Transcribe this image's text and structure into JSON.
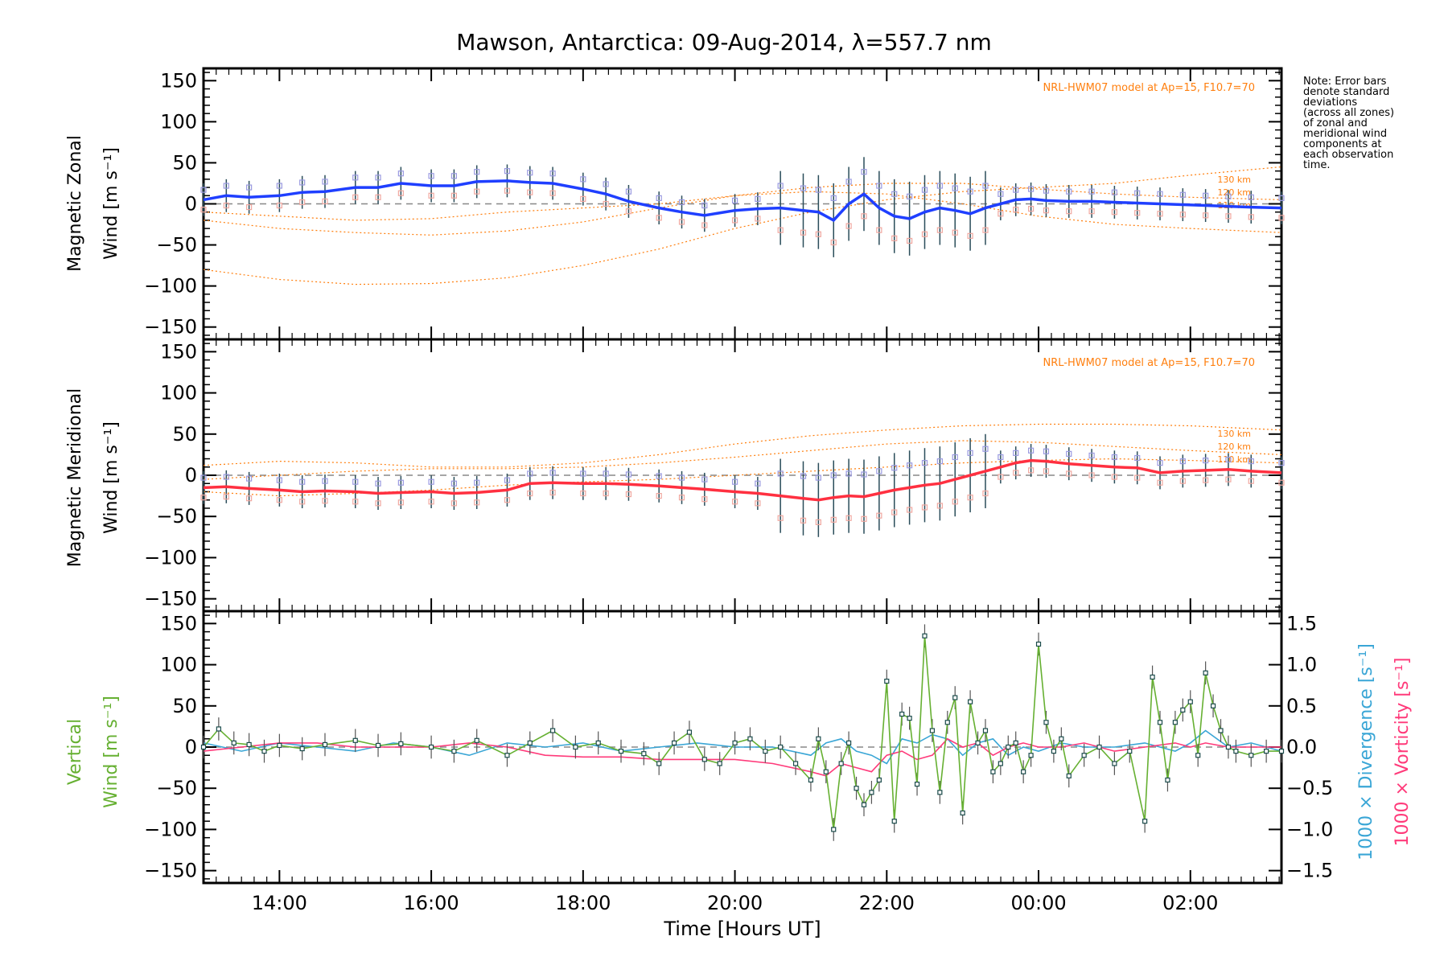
{
  "title": "Mawson, Antarctica: 09-Aug-2014, λ=557.7 nm",
  "note_lines": [
    "Note: Error bars",
    "denote standard",
    "deviations",
    "(across all zones)",
    "of zonal and",
    "meridional wind",
    "components at",
    "each observation",
    "time."
  ],
  "model_label": "NRL-HWM07 model at Ap=15, F10.7=70",
  "x_axis_title": "Time [Hours UT]",
  "x_ticks": [
    {
      "t": 14,
      "label": "14:00"
    },
    {
      "t": 16,
      "label": "16:00"
    },
    {
      "t": 18,
      "label": "18:00"
    },
    {
      "t": 20,
      "label": "20:00"
    },
    {
      "t": 22,
      "label": "22:00"
    },
    {
      "t": 24,
      "label": "00:00"
    },
    {
      "t": 26,
      "label": "02:00"
    }
  ],
  "y_ticks": [
    "150",
    "100",
    "50",
    "0",
    "−50",
    "−100",
    "−150"
  ],
  "right_ticks": [
    "1.5",
    "1.0",
    "0.5",
    "0.0",
    "−0.5",
    "−1.0",
    "−1.5"
  ],
  "panel1": {
    "ylabel_1": "Magnetic Zonal",
    "ylabel_2": "Wind [m s⁻¹]",
    "alt_labels": [
      "130 km",
      "120 km",
      "110 km"
    ]
  },
  "panel2": {
    "ylabel_1": "Magnetic Meridional",
    "ylabel_2": "Wind [m s⁻¹]",
    "alt_labels": [
      "130 km",
      "120 km",
      "110 km"
    ]
  },
  "panel3": {
    "ylabel_1": "Vertical",
    "ylabel_2": "Wind [m s⁻¹]",
    "right_label_1": "1000 × Divergence [s⁻¹]",
    "right_label_2": "1000 × Vorticity [s⁻¹]"
  },
  "colors": {
    "zonal": "#1f3fff",
    "meridional": "#ff3040",
    "vertical": "#66b032",
    "divergence": "#3aa6d6",
    "vorticity": "#ff3a7a",
    "model": "#ff7f0e"
  },
  "chart_data": [
    {
      "type": "line",
      "ylabel": "Magnetic Zonal Wind [m s⁻¹]",
      "xlabel": "Time [Hours UT]",
      "x_unit": "hours UT since 00:00 09-Aug-2014",
      "xlim": [
        13,
        27.2
      ],
      "ylim": [
        -165,
        165
      ],
      "series": [
        {
          "name": "",
          "x": [
            13,
            13.3,
            13.6,
            14,
            14.3,
            14.6,
            15,
            15.3,
            15.6,
            16,
            16.3,
            16.6,
            17,
            17.3,
            17.6,
            18,
            18.3,
            18.6,
            19,
            19.3,
            19.6,
            20,
            20.3,
            20.6,
            20.9,
            21.1,
            21.3,
            21.5,
            21.7,
            21.9,
            22.1,
            22.3,
            22.5,
            22.7,
            22.9,
            23.1,
            23.3,
            23.5,
            23.7,
            23.9,
            24.1,
            24.4,
            24.7,
            25,
            25.3,
            25.6,
            25.9,
            26.2,
            26.5,
            26.8,
            27.2
          ],
          "y": [
            5,
            10,
            8,
            10,
            14,
            15,
            20,
            20,
            25,
            22,
            22,
            27,
            28,
            26,
            25,
            18,
            12,
            3,
            -5,
            -10,
            -14,
            -8,
            -6,
            -5,
            -8,
            -10,
            -20,
            0,
            12,
            -5,
            -15,
            -18,
            -10,
            -5,
            -8,
            -12,
            -5,
            0,
            5,
            6,
            4,
            3,
            3,
            2,
            1,
            0,
            -1,
            -2,
            -3,
            -4,
            -5
          ]
        }
      ]
    },
    {
      "type": "line",
      "ylabel": "Magnetic Meridional Wind [m s⁻¹]",
      "xlabel": "Time [Hours UT]",
      "xlim": [
        13,
        27.2
      ],
      "ylim": [
        -165,
        165
      ],
      "series": [
        {
          "name": "",
          "x": [
            13,
            13.3,
            13.6,
            14,
            14.3,
            14.6,
            15,
            15.3,
            15.6,
            16,
            16.3,
            16.6,
            17,
            17.3,
            17.6,
            18,
            18.3,
            18.6,
            19,
            19.3,
            19.6,
            20,
            20.3,
            20.6,
            20.9,
            21.1,
            21.3,
            21.5,
            21.7,
            21.9,
            22.1,
            22.3,
            22.5,
            22.7,
            22.9,
            23.1,
            23.3,
            23.5,
            23.7,
            23.9,
            24.1,
            24.4,
            24.7,
            25,
            25.3,
            25.6,
            25.9,
            26.2,
            26.5,
            26.8,
            27.2
          ],
          "y": [
            -15,
            -14,
            -16,
            -18,
            -20,
            -19,
            -20,
            -22,
            -21,
            -20,
            -22,
            -21,
            -18,
            -10,
            -9,
            -10,
            -10,
            -11,
            -13,
            -15,
            -17,
            -20,
            -22,
            -25,
            -28,
            -30,
            -27,
            -25,
            -26,
            -22,
            -18,
            -15,
            -12,
            -10,
            -5,
            0,
            5,
            10,
            15,
            18,
            17,
            14,
            12,
            10,
            9,
            3,
            5,
            6,
            7,
            5,
            3
          ]
        }
      ]
    },
    {
      "type": "line",
      "ylabel": "Vertical Wind [m s⁻¹]",
      "xlabel": "Time [Hours UT]",
      "xlim": [
        13,
        27.2
      ],
      "ylim": [
        -165,
        165
      ],
      "y2label": "1000 × Divergence / Vorticity [s⁻¹]",
      "y2lim": [
        -1.65,
        1.65
      ],
      "series": [
        {
          "name": "Vertical",
          "axis": "left",
          "x": [
            13,
            13.2,
            13.4,
            13.6,
            13.8,
            14,
            14.3,
            14.6,
            15,
            15.3,
            15.6,
            16,
            16.3,
            16.6,
            17,
            17.3,
            17.6,
            17.9,
            18.2,
            18.5,
            18.8,
            19,
            19.2,
            19.4,
            19.6,
            19.8,
            20,
            20.2,
            20.4,
            20.6,
            20.8,
            21,
            21.1,
            21.2,
            21.3,
            21.4,
            21.5,
            21.6,
            21.7,
            21.8,
            21.9,
            22,
            22.1,
            22.2,
            22.3,
            22.4,
            22.5,
            22.6,
            22.7,
            22.8,
            22.9,
            23,
            23.1,
            23.2,
            23.3,
            23.4,
            23.5,
            23.6,
            23.7,
            23.8,
            23.9,
            24,
            24.1,
            24.2,
            24.3,
            24.4,
            24.6,
            24.8,
            25,
            25.2,
            25.4,
            25.5,
            25.6,
            25.7,
            25.8,
            25.9,
            26,
            26.1,
            26.2,
            26.3,
            26.4,
            26.5,
            26.6,
            26.8,
            27,
            27.2
          ],
          "y": [
            0,
            22,
            5,
            3,
            -5,
            2,
            -2,
            3,
            8,
            2,
            4,
            0,
            -5,
            8,
            -10,
            5,
            20,
            0,
            5,
            -5,
            -8,
            -20,
            5,
            18,
            -15,
            -20,
            5,
            10,
            -5,
            0,
            -20,
            -40,
            10,
            -30,
            -100,
            -20,
            5,
            -50,
            -70,
            -55,
            -40,
            80,
            -90,
            40,
            35,
            -45,
            135,
            20,
            -55,
            30,
            60,
            -80,
            55,
            5,
            20,
            -30,
            -20,
            0,
            5,
            -30,
            -10,
            125,
            30,
            -5,
            10,
            -35,
            -10,
            0,
            -20,
            -5,
            -90,
            85,
            30,
            -40,
            30,
            45,
            55,
            -10,
            90,
            50,
            20,
            0,
            -5,
            -10,
            -5,
            -5
          ]
        },
        {
          "name": "1000 × Divergence",
          "axis": "right",
          "x": [
            13,
            13.5,
            14,
            14.5,
            15,
            15.5,
            16,
            16.5,
            17,
            17.5,
            18,
            18.5,
            19,
            19.5,
            20,
            20.5,
            21,
            21.2,
            21.4,
            21.6,
            21.8,
            22,
            22.2,
            22.4,
            22.6,
            22.8,
            23,
            23.2,
            23.4,
            23.6,
            23.8,
            24,
            24.3,
            24.6,
            25,
            25.4,
            25.8,
            26,
            26.2,
            26.5,
            26.8,
            27.2
          ],
          "y": [
            0.05,
            -0.05,
            0.05,
            0.0,
            -0.05,
            0.05,
            0.0,
            -0.1,
            0.05,
            0.0,
            0.05,
            -0.05,
            0.0,
            0.05,
            0.0,
            0.0,
            -0.1,
            0.05,
            0.1,
            -0.05,
            -0.1,
            -0.2,
            0.1,
            0.05,
            0.15,
            0.1,
            -0.1,
            0.05,
            0.1,
            -0.1,
            0.0,
            -0.05,
            0.05,
            0.0,
            0.0,
            0.05,
            -0.05,
            0.05,
            0.2,
            0.0,
            0.05,
            -0.05
          ]
        },
        {
          "name": "1000 × Vorticity",
          "axis": "right",
          "x": [
            13,
            13.5,
            14,
            14.5,
            15,
            15.5,
            16,
            16.5,
            17,
            17.5,
            18,
            18.5,
            19,
            19.5,
            20,
            20.5,
            21,
            21.2,
            21.4,
            21.6,
            21.8,
            22,
            22.2,
            22.4,
            22.6,
            22.8,
            23,
            23.2,
            23.4,
            23.6,
            23.8,
            24,
            24.3,
            24.6,
            25,
            25.4,
            25.8,
            26,
            26.2,
            26.5,
            26.8,
            27.2
          ],
          "y": [
            -0.05,
            0.0,
            0.05,
            0.05,
            0.0,
            0.0,
            0.0,
            0.05,
            0.0,
            -0.1,
            -0.12,
            -0.12,
            -0.15,
            -0.15,
            -0.15,
            -0.2,
            -0.3,
            -0.35,
            -0.2,
            -0.25,
            -0.3,
            -0.1,
            -0.05,
            -0.15,
            -0.1,
            0.1,
            0.0,
            0.05,
            -0.1,
            0.0,
            0.05,
            0.0,
            0.0,
            0.05,
            -0.05,
            0.0,
            0.05,
            0.0,
            0.05,
            0.0,
            0.0,
            0.0
          ]
        }
      ]
    }
  ],
  "model_curves": {
    "panel1": [
      {
        "x": [
          13,
          14,
          15,
          16,
          17,
          18,
          19,
          20,
          21,
          22,
          23,
          24,
          25,
          26,
          27.2
        ],
        "y": [
          -80,
          -92,
          -98,
          -97,
          -90,
          -75,
          -55,
          -30,
          -10,
          5,
          15,
          20,
          25,
          35,
          45
        ]
      },
      {
        "x": [
          13,
          14,
          15,
          16,
          17,
          18,
          19,
          20,
          21,
          22,
          23,
          24,
          25,
          26,
          27.2
        ],
        "y": [
          -20,
          -30,
          -35,
          -38,
          -33,
          -22,
          -5,
          10,
          20,
          25,
          25,
          18,
          12,
          8,
          5
        ]
      },
      {
        "x": [
          13,
          14,
          15,
          16,
          17,
          18,
          19,
          20,
          21,
          22,
          23,
          24,
          25,
          26,
          27.2
        ],
        "y": [
          -10,
          -15,
          -20,
          -18,
          -10,
          -5,
          0,
          10,
          15,
          12,
          0,
          -15,
          -25,
          -30,
          -35
        ]
      }
    ],
    "panel2": [
      {
        "x": [
          13,
          14,
          15,
          16,
          17,
          18,
          19,
          20,
          21,
          22,
          23,
          24,
          25,
          26,
          27.2
        ],
        "y": [
          12,
          17,
          15,
          10,
          10,
          15,
          25,
          38,
          48,
          55,
          60,
          62,
          62,
          60,
          55
        ]
      },
      {
        "x": [
          13,
          14,
          15,
          16,
          17,
          18,
          19,
          20,
          21,
          22,
          23,
          24,
          25,
          26,
          27.2
        ],
        "y": [
          -5,
          0,
          5,
          8,
          8,
          10,
          15,
          22,
          30,
          38,
          42,
          40,
          35,
          30,
          25
        ]
      },
      {
        "x": [
          13,
          14,
          15,
          16,
          17,
          18,
          19,
          20,
          21,
          22,
          23,
          24,
          25,
          26,
          27.2
        ],
        "y": [
          -20,
          -25,
          -22,
          -18,
          -12,
          -8,
          -5,
          0,
          5,
          10,
          15,
          18,
          20,
          18,
          15
        ]
      }
    ]
  }
}
